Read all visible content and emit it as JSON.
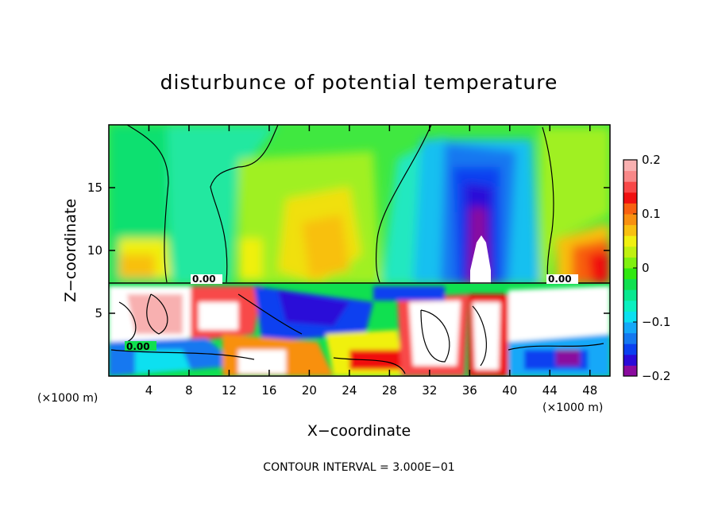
{
  "chart_data": {
    "type": "heatmap",
    "title": "disturbunce of potential temperature",
    "xlabel": "X−coordinate",
    "ylabel": "Z−coordinate",
    "x_unit": "(×1000 m)",
    "y_unit": "(×1000 m)",
    "xlim": [
      0,
      50
    ],
    "ylim": [
      0,
      20
    ],
    "x_ticks": [
      4,
      8,
      12,
      16,
      20,
      24,
      28,
      32,
      36,
      40,
      44,
      48
    ],
    "x_tick_labels": [
      "4",
      "8",
      "12",
      "16",
      "20",
      "24",
      "28",
      "32",
      "36",
      "40",
      "44",
      "48"
    ],
    "y_ticks": [
      5,
      10,
      15
    ],
    "y_tick_labels": [
      "5",
      "10",
      "15"
    ],
    "colorbar": {
      "range": [
        -0.2,
        0.2
      ],
      "ticks": [
        0.2,
        0.1,
        0,
        -0.1,
        -0.2
      ],
      "tick_labels": [
        "0.2",
        "0.1",
        "0",
        "−0.1",
        "−0.2"
      ],
      "colors": [
        "#8a0a9e",
        "#2a0ad8",
        "#0a40f0",
        "#1478f0",
        "#14a8f8",
        "#0ae0f0",
        "#0af0c0",
        "#0ae890",
        "#10e050",
        "#30e810",
        "#80f010",
        "#c0f010",
        "#f0f010",
        "#f8c010",
        "#f89010",
        "#f86010",
        "#f01010",
        "#f84848",
        "#f88888",
        "#f8b0b0"
      ]
    },
    "contour_labels": [
      "0.00",
      "0.00",
      "0.00"
    ],
    "footer": "CONTOUR INTERVAL = 3.000E−01",
    "colors": {
      "low": "#8a0a9e",
      "mid": "#10e050",
      "high": "#f8b0b0",
      "saturated": "#ffffff"
    }
  }
}
